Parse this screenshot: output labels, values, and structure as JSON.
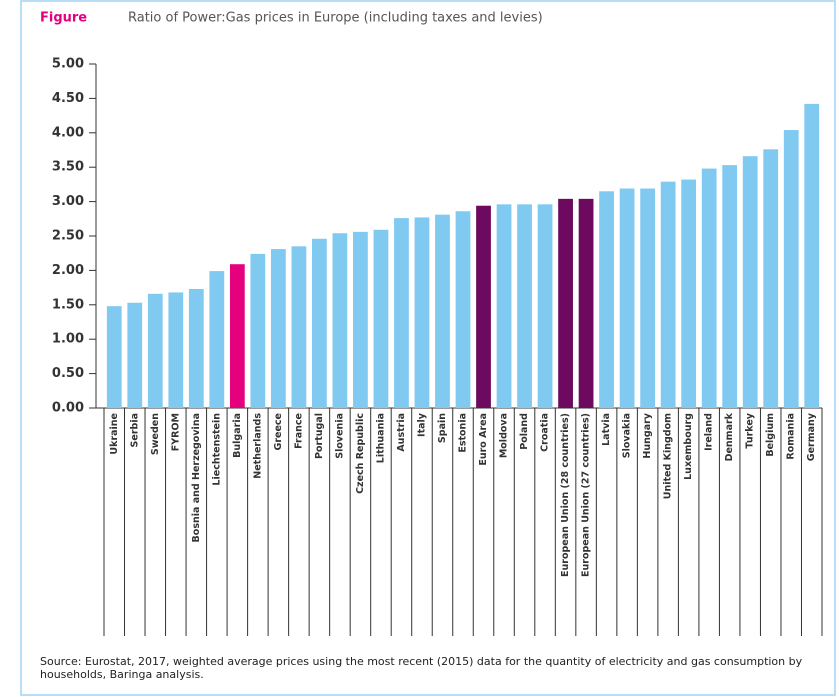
{
  "chart_data": {
    "type": "bar",
    "figure_label": "Figure",
    "title": "Ratio of Power:Gas prices in Europe (including taxes and levies)",
    "categories": [
      "Ukraine",
      "Serbia",
      "Sweden",
      "FYROM",
      "Bosnia and Herzegovina",
      "Liechtenstein",
      "Bulgaria",
      "Netherlands",
      "Greece",
      "France",
      "Portugal",
      "Slovenia",
      "Czech Republic",
      "Lithuania",
      "Austria",
      "Italy",
      "Spain",
      "Estonia",
      "Euro Area",
      "Moldova",
      "Poland",
      "Croatia",
      "European Union (28 countries)",
      "European Union (27 countries)",
      "Latvia",
      "Slovakia",
      "Hungary",
      "United Kingdom",
      "Luxembourg",
      "Ireland",
      "Denmark",
      "Turkey",
      "Belgium",
      "Romania",
      "Germany"
    ],
    "values": [
      1.48,
      1.53,
      1.66,
      1.68,
      1.73,
      1.99,
      2.09,
      2.24,
      2.31,
      2.35,
      2.46,
      2.54,
      2.56,
      2.59,
      2.76,
      2.77,
      2.81,
      2.86,
      2.94,
      2.96,
      2.96,
      2.96,
      3.04,
      3.04,
      3.15,
      3.19,
      3.19,
      3.29,
      3.32,
      3.48,
      3.53,
      3.66,
      3.76,
      4.04,
      4.42
    ],
    "colors": [
      "#80c9f1",
      "#80c9f1",
      "#80c9f1",
      "#80c9f1",
      "#80c9f1",
      "#80c9f1",
      "#e5007d",
      "#80c9f1",
      "#80c9f1",
      "#80c9f1",
      "#80c9f1",
      "#80c9f1",
      "#80c9f1",
      "#80c9f1",
      "#80c9f1",
      "#80c9f1",
      "#80c9f1",
      "#80c9f1",
      "#6d0a5f",
      "#80c9f1",
      "#80c9f1",
      "#80c9f1",
      "#6d0a5f",
      "#6d0a5f",
      "#80c9f1",
      "#80c9f1",
      "#80c9f1",
      "#80c9f1",
      "#80c9f1",
      "#80c9f1",
      "#80c9f1",
      "#80c9f1",
      "#80c9f1",
      "#80c9f1",
      "#80c9f1"
    ],
    "ylim": [
      0,
      5
    ],
    "yticks": [
      {
        "value": 0,
        "label": "0.00"
      },
      {
        "value": 0.5,
        "label": "0.50"
      },
      {
        "value": 1,
        "label": "1.00"
      },
      {
        "value": 1.5,
        "label": "1.50"
      },
      {
        "value": 2,
        "label": "2.00"
      },
      {
        "value": 2.5,
        "label": "2.50"
      },
      {
        "value": 3,
        "label": "3.00"
      },
      {
        "value": 3.5,
        "label": "3.50"
      },
      {
        "value": 4,
        "label": "4.00"
      },
      {
        "value": 4.5,
        "label": "4.50"
      },
      {
        "value": 5,
        "label": "5.00"
      }
    ],
    "grid": false,
    "source": "Source: Eurostat, 2017, weighted average prices using the most recent (2015) data for the quantity of electricity and gas consumption by households, Baringa analysis."
  }
}
